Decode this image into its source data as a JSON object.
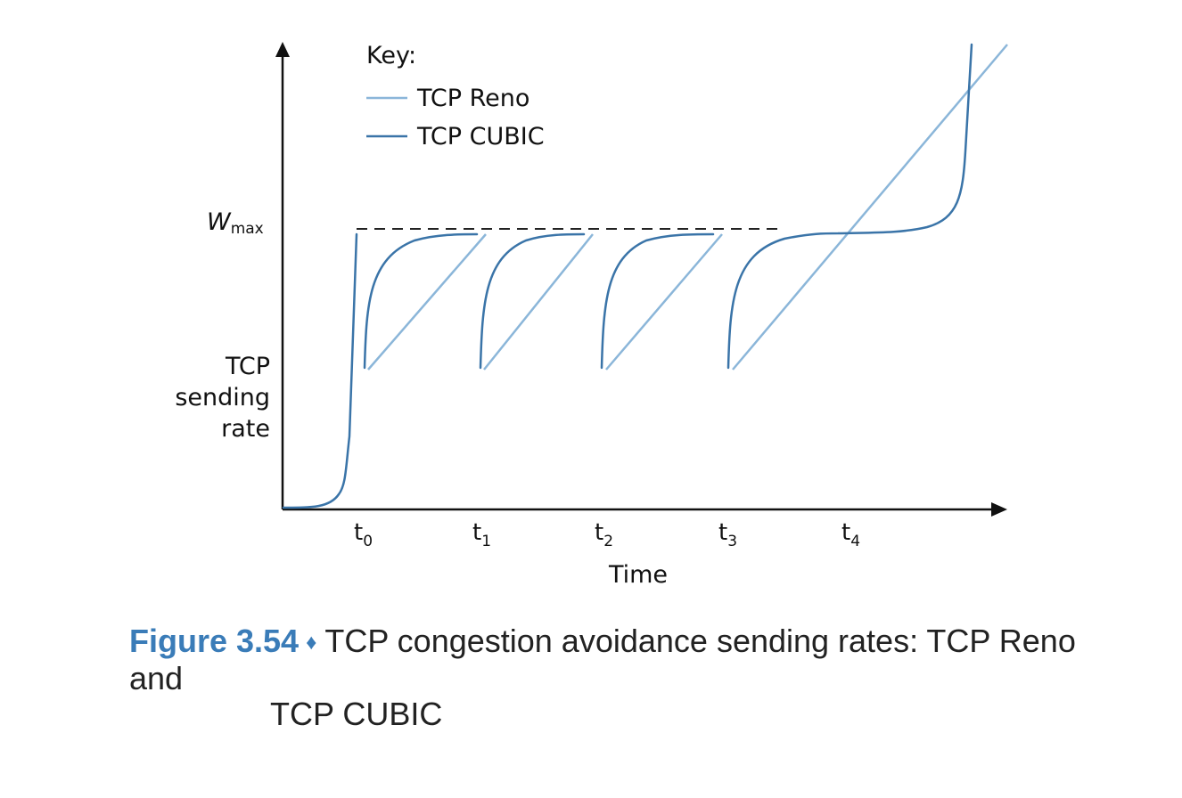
{
  "key": {
    "title": "Key:",
    "reno_label": "TCP Reno",
    "cubic_label": "TCP CUBIC"
  },
  "axes": {
    "y_label_line1": "TCP",
    "y_label_line2": "sending",
    "y_label_line3": "rate",
    "x_label": "Time",
    "wmax_main": "W",
    "wmax_sub": "max"
  },
  "ticks": [
    {
      "base": "t",
      "sub": "0"
    },
    {
      "base": "t",
      "sub": "1"
    },
    {
      "base": "t",
      "sub": "2"
    },
    {
      "base": "t",
      "sub": "3"
    },
    {
      "base": "t",
      "sub": "4"
    }
  ],
  "colors": {
    "reno": "#8bb6d9",
    "cubic": "#3a74a8",
    "axis": "#111111",
    "caption_accent": "#3a7cb8"
  },
  "caption": {
    "number": "Figure 3.54",
    "diamond": "♦",
    "line1": "TCP congestion avoidance sending rates: TCP Reno and",
    "line2": "TCP CUBIC"
  }
}
